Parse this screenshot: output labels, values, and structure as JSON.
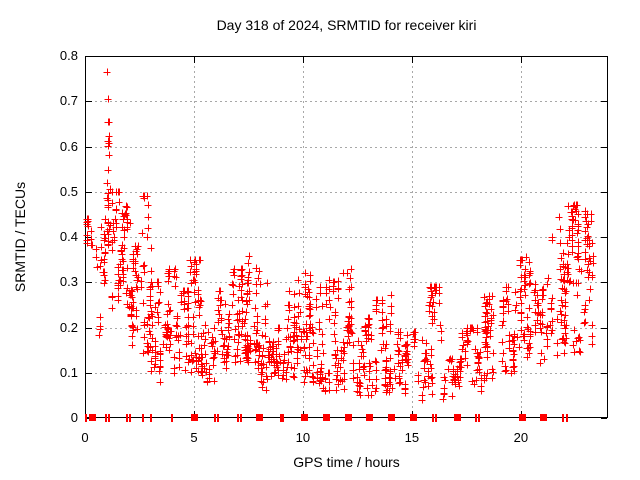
{
  "page": {
    "background": "#ffffff",
    "text_color": "#000000"
  },
  "chart_data": {
    "type": "scatter",
    "title": "Day 318 of 2024, SRMTID for receiver kiri",
    "xlabel": "GPS time / hours",
    "ylabel": "SRMTID / TECUs",
    "xlim": [
      0,
      24
    ],
    "ylim": [
      0,
      0.8
    ],
    "x_tick_values": [
      0,
      5,
      10,
      15,
      20
    ],
    "x_tick_labels": [
      "0",
      "5",
      "10",
      "15",
      "20"
    ],
    "y_tick_values": [
      0,
      0.1,
      0.2,
      0.3,
      0.4,
      0.5,
      0.6,
      0.7,
      0.8
    ],
    "y_tick_labels": [
      "0",
      "0.1",
      "0.2",
      "0.3",
      "0.4",
      "0.5",
      "0.6",
      "0.7",
      "0.8"
    ],
    "grid": "dotted",
    "grid_color": "#a8a8a8",
    "frame_color": "#000000",
    "legend": "none",
    "marker": "plus",
    "marker_color": "#ff0000",
    "marker_size_px": 7,
    "series": [
      {
        "name": "SRMTID",
        "marker": "plus",
        "color": "#ff0000"
      }
    ],
    "data_note": "Dense 30s-epoch scatter (~1400 points). Values read off plot as per-interval envelopes; U-shaped daily pattern: ~0.4 TECUs at 0h, spike to 0.75 near 1h, minimum ~0.05-0.1 around 15-17h, rising to ~0.47 near 22-23h. Data ends ~23.3h.",
    "scatter_density_bins": {
      "columns": [
        "hour_start",
        "hour_end",
        "n_points",
        "value_min",
        "value_max",
        "low_bias_exponent"
      ],
      "rows": [
        [
          0.0,
          0.35,
          14,
          0.37,
          0.44,
          1.0
        ],
        [
          0.35,
          0.9,
          22,
          0.18,
          0.47,
          0.8
        ],
        [
          0.9,
          1.15,
          16,
          0.3,
          0.76,
          1.4
        ],
        [
          1.15,
          1.6,
          30,
          0.2,
          0.5,
          1.1
        ],
        [
          1.6,
          2.1,
          40,
          0.22,
          0.47,
          0.9
        ],
        [
          2.1,
          2.6,
          38,
          0.15,
          0.38,
          1.0
        ],
        [
          2.6,
          3.0,
          28,
          0.14,
          0.49,
          1.5
        ],
        [
          3.0,
          3.6,
          40,
          0.08,
          0.3,
          1.2
        ],
        [
          3.6,
          4.2,
          40,
          0.1,
          0.33,
          1.4
        ],
        [
          4.2,
          4.8,
          36,
          0.1,
          0.28,
          1.2
        ],
        [
          4.8,
          5.3,
          36,
          0.1,
          0.35,
          1.4
        ],
        [
          5.3,
          6.0,
          40,
          0.08,
          0.26,
          1.2
        ],
        [
          6.0,
          6.6,
          38,
          0.1,
          0.28,
          1.2
        ],
        [
          6.6,
          7.3,
          40,
          0.1,
          0.33,
          1.4
        ],
        [
          7.3,
          7.8,
          36,
          0.12,
          0.36,
          1.4
        ],
        [
          7.8,
          8.4,
          40,
          0.06,
          0.33,
          1.6
        ],
        [
          8.4,
          9.2,
          44,
          0.08,
          0.2,
          1.1
        ],
        [
          9.2,
          10.0,
          44,
          0.08,
          0.28,
          1.4
        ],
        [
          10.0,
          10.7,
          46,
          0.08,
          0.32,
          1.5
        ],
        [
          10.7,
          11.5,
          44,
          0.06,
          0.3,
          1.5
        ],
        [
          11.5,
          12.3,
          46,
          0.06,
          0.33,
          1.6
        ],
        [
          12.3,
          13.3,
          48,
          0.05,
          0.22,
          1.3
        ],
        [
          13.3,
          14.3,
          48,
          0.05,
          0.26,
          1.4
        ],
        [
          14.3,
          15.3,
          48,
          0.05,
          0.19,
          1.2
        ],
        [
          15.3,
          16.4,
          50,
          0.04,
          0.29,
          1.6
        ],
        [
          16.4,
          17.3,
          44,
          0.04,
          0.13,
          1.1
        ],
        [
          17.3,
          18.2,
          42,
          0.06,
          0.2,
          1.2
        ],
        [
          18.2,
          19.1,
          42,
          0.08,
          0.27,
          1.4
        ],
        [
          19.1,
          19.9,
          42,
          0.1,
          0.29,
          1.3
        ],
        [
          19.9,
          20.6,
          44,
          0.12,
          0.35,
          1.3
        ],
        [
          20.6,
          21.4,
          42,
          0.12,
          0.31,
          1.2
        ],
        [
          21.4,
          22.1,
          42,
          0.14,
          0.4,
          1.3
        ],
        [
          22.1,
          22.8,
          44,
          0.14,
          0.47,
          1.4
        ],
        [
          22.8,
          23.3,
          30,
          0.15,
          0.45,
          1.2
        ]
      ]
    },
    "spike_columns": {
      "columns": [
        "hour",
        "value_min",
        "value_max",
        "n_points"
      ],
      "rows": [
        [
          1.05,
          0.5,
          0.76,
          6
        ],
        [
          1.02,
          0.38,
          0.52,
          6
        ],
        [
          2.85,
          0.4,
          0.49,
          5
        ],
        [
          5.0,
          0.26,
          0.35,
          5
        ],
        [
          7.5,
          0.26,
          0.36,
          6
        ],
        [
          7.85,
          0.22,
          0.33,
          5
        ],
        [
          9.8,
          0.2,
          0.3,
          5
        ],
        [
          10.3,
          0.23,
          0.32,
          6
        ],
        [
          11.2,
          0.22,
          0.31,
          5
        ],
        [
          12.2,
          0.24,
          0.33,
          5
        ],
        [
          14.0,
          0.19,
          0.27,
          5
        ],
        [
          15.9,
          0.21,
          0.29,
          5
        ],
        [
          18.35,
          0.19,
          0.27,
          5
        ],
        [
          20.2,
          0.27,
          0.35,
          5
        ],
        [
          21.8,
          0.33,
          0.44,
          5
        ],
        [
          22.35,
          0.38,
          0.47,
          6
        ],
        [
          22.6,
          0.36,
          0.45,
          5
        ],
        [
          22.95,
          0.35,
          0.46,
          6
        ],
        [
          23.15,
          0.26,
          0.38,
          5
        ]
      ]
    },
    "zero_value_squares_hours": [
      0.3,
      5.0,
      8.0,
      10.05,
      11.05,
      12.05,
      13.05,
      14.05,
      15.05,
      17.05,
      20.05,
      21.0
    ],
    "zero_value_ticks_hours": [
      0.05,
      0.95,
      1.08,
      1.92,
      2.05,
      2.65,
      3.05,
      4.0,
      5.98,
      6.1,
      7.02,
      7.15,
      8.98,
      9.1,
      15.98,
      16.12,
      17.95,
      18.1,
      21.95,
      22.1
    ],
    "render_seed": 20241113
  }
}
